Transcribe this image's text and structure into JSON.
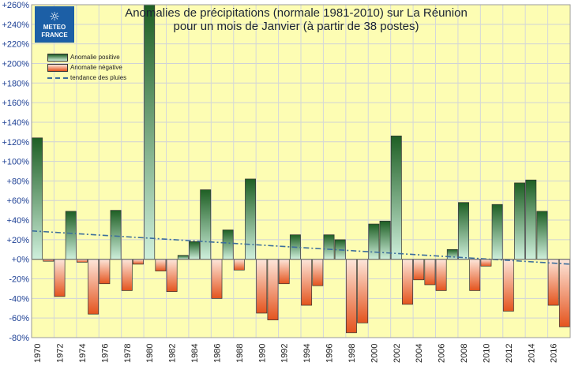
{
  "logo": {
    "icon": "sun-cloud-icon",
    "line1": "METEO",
    "line2": "FRANCE"
  },
  "chart_data": {
    "type": "bar",
    "title": "Anomalies de précipitations (normale 1981-2010) sur La Réunion\npour un mois de Janvier (à partir de 38 postes)",
    "xlabel": "",
    "ylabel": "",
    "ylim": [
      -80,
      260
    ],
    "y_ticks": [
      -80,
      -60,
      -40,
      -20,
      0,
      20,
      40,
      60,
      80,
      100,
      120,
      140,
      160,
      180,
      200,
      220,
      240,
      260
    ],
    "y_tick_labels": [
      "-80%",
      "-60%",
      "-40%",
      "-20%",
      "+0%",
      "+20%",
      "+40%",
      "+60%",
      "+80%",
      "+100%",
      "+120%",
      "+140%",
      "+160%",
      "+180%",
      "+200%",
      "+220%",
      "+240%",
      "+260%"
    ],
    "categories": [
      1970,
      1971,
      1972,
      1973,
      1974,
      1975,
      1976,
      1977,
      1978,
      1979,
      1980,
      1981,
      1982,
      1983,
      1984,
      1985,
      1986,
      1987,
      1988,
      1989,
      1990,
      1991,
      1992,
      1993,
      1994,
      1995,
      1996,
      1997,
      1998,
      1999,
      2000,
      2001,
      2002,
      2003,
      2004,
      2005,
      2006,
      2007,
      2008,
      2009,
      2010,
      2011,
      2012,
      2013,
      2014,
      2015,
      2016,
      2017
    ],
    "x_tick_labels": [
      "1970",
      "1972",
      "1974",
      "1976",
      "1978",
      "1980",
      "1982",
      "1984",
      "1986",
      "1988",
      "1990",
      "1992",
      "1994",
      "1996",
      "1998",
      "2000",
      "2002",
      "2004",
      "2006",
      "2008",
      "2010",
      "2012",
      "2014",
      "2016"
    ],
    "values": [
      124,
      -2,
      -38,
      49,
      -3,
      -56,
      -25,
      50,
      -32,
      -5,
      265,
      -12,
      -33,
      4,
      18,
      71,
      -40,
      30,
      -11,
      82,
      -55,
      -62,
      -25,
      25,
      -47,
      -27,
      25,
      20,
      -75,
      -65,
      36,
      39,
      126,
      -46,
      -21,
      -26,
      -32,
      10,
      58,
      -32,
      -7,
      56,
      -53,
      78,
      81,
      49,
      -47,
      -69
    ],
    "trend": {
      "start": 29,
      "end": -5
    },
    "legend": [
      "Anomalie positive",
      "Anomalie négative",
      "tendance des pluies"
    ],
    "legend_position": "top-left",
    "grid": true,
    "colors": {
      "background": "#fdfdb3",
      "positive_top": "#1e5f24",
      "positive_bottom": "#cff0dc",
      "negative_top": "#fde6da",
      "negative_bottom": "#e4541e",
      "trend": "#3c6e9c",
      "axis_text": "#1c3f94"
    }
  }
}
